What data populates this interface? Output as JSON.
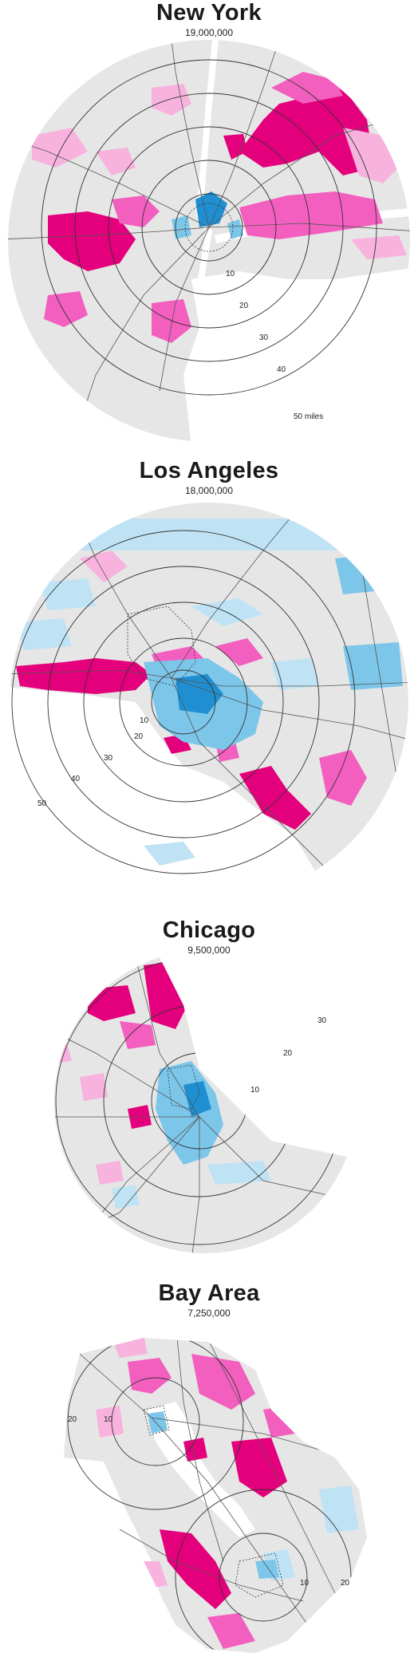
{
  "colors": {
    "land": "#e6e6e6",
    "water": "#ffffff",
    "magenta_strong": "#e4007c",
    "magenta_mid": "#f35fbf",
    "magenta_light": "#f7b3de",
    "cyan_strong": "#1f8fd1",
    "cyan_mid": "#7cc6ea",
    "cyan_light": "#bfe3f4",
    "ring": "#333333",
    "road": "#555555"
  },
  "maps": [
    {
      "city": "New York",
      "population": "19,000,000",
      "rings": [
        {
          "label": "10",
          "distance_miles": 10
        },
        {
          "label": "20",
          "distance_miles": 20
        },
        {
          "label": "30",
          "distance_miles": 30
        },
        {
          "label": "40",
          "distance_miles": 40
        },
        {
          "label": "50 miles",
          "distance_miles": 50
        }
      ]
    },
    {
      "city": "Los Angeles",
      "population": "18,000,000",
      "rings": [
        {
          "label": "10",
          "distance_miles": 10
        },
        {
          "label": "20",
          "distance_miles": 20
        },
        {
          "label": "30",
          "distance_miles": 30
        },
        {
          "label": "40",
          "distance_miles": 40
        },
        {
          "label": "50",
          "distance_miles": 50
        }
      ]
    },
    {
      "city": "Chicago",
      "population": "9,500,000",
      "rings": [
        {
          "label": "10",
          "distance_miles": 10
        },
        {
          "label": "20",
          "distance_miles": 20
        },
        {
          "label": "30",
          "distance_miles": 30
        }
      ]
    },
    {
      "city": "Bay Area",
      "population": "7,250,000",
      "rings_west": [
        {
          "label": "10",
          "distance_miles": 10
        },
        {
          "label": "20",
          "distance_miles": 20
        }
      ],
      "rings_south": [
        {
          "label": "10",
          "distance_miles": 10
        },
        {
          "label": "20",
          "distance_miles": 20
        }
      ]
    }
  ]
}
